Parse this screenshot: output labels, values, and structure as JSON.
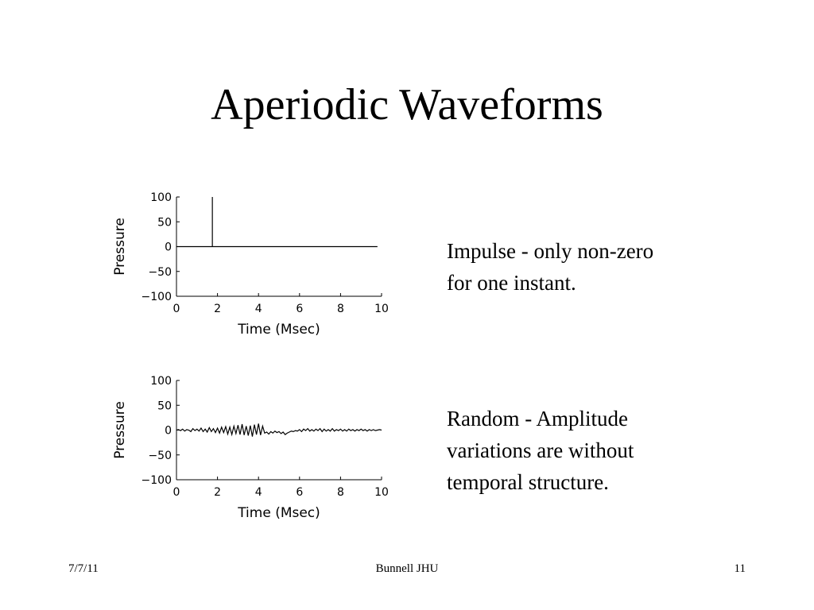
{
  "slide": {
    "title": "Aperiodic Waveforms",
    "descriptions": [
      {
        "lines": [
          "Impulse - only non-zero",
          "for one instant."
        ]
      },
      {
        "lines": [
          "Random - Amplitude",
          "variations are without",
          "temporal structure."
        ]
      }
    ],
    "footer": {
      "date": "7/7/11",
      "author": "Bunnell JHU",
      "page": "11"
    }
  },
  "chart_data": [
    {
      "type": "line",
      "xlabel": "Time (Msec)",
      "ylabel": "Pressure",
      "xlim": [
        0,
        10
      ],
      "ylim": [
        -100,
        100
      ],
      "xticks": [
        0,
        2,
        4,
        6,
        8,
        10
      ],
      "yticks": [
        100,
        50,
        0,
        -50,
        -100
      ],
      "grid": false,
      "series": [
        {
          "x": [
            0,
            1.75,
            1.75,
            1.75,
            9.8
          ],
          "y": [
            0,
            0,
            100,
            0,
            0
          ]
        }
      ]
    },
    {
      "type": "line",
      "xlabel": "Time (Msec)",
      "ylabel": "Pressure",
      "xlim": [
        0,
        10
      ],
      "ylim": [
        -100,
        100
      ],
      "xticks": [
        0,
        2,
        4,
        6,
        8,
        10
      ],
      "yticks": [
        100,
        50,
        0,
        -50,
        -100
      ],
      "grid": false,
      "series": [
        {
          "x": [
            0.0,
            0.1,
            0.2,
            0.3,
            0.4,
            0.5,
            0.6,
            0.7,
            0.8,
            0.9,
            1.0,
            1.1,
            1.2,
            1.3,
            1.4,
            1.5,
            1.6,
            1.7,
            1.8,
            1.9,
            2.0,
            2.1,
            2.2,
            2.3,
            2.4,
            2.5,
            2.6,
            2.7,
            2.8,
            2.9,
            3.0,
            3.1,
            3.2,
            3.3,
            3.4,
            3.5,
            3.6,
            3.7,
            3.8,
            3.9,
            4.0,
            4.1,
            4.2,
            4.3,
            4.4,
            4.5,
            4.6,
            4.7,
            4.8,
            4.9,
            5.0,
            5.1,
            5.2,
            5.3,
            5.4,
            5.5,
            5.6,
            5.7,
            5.8,
            5.9,
            6.0,
            6.1,
            6.2,
            6.3,
            6.4,
            6.5,
            6.6,
            6.7,
            6.8,
            6.9,
            7.0,
            7.1,
            7.2,
            7.3,
            7.4,
            7.5,
            7.6,
            7.7,
            7.8,
            7.9,
            8.0,
            8.1,
            8.2,
            8.3,
            8.4,
            8.5,
            8.6,
            8.7,
            8.8,
            8.9,
            9.0,
            9.1,
            9.2,
            9.3,
            9.4,
            9.5,
            9.6,
            9.7,
            9.8,
            9.9,
            10.0
          ],
          "y": [
            0,
            1,
            -1,
            2,
            -2,
            1,
            0,
            -3,
            3,
            -1,
            2,
            -2,
            4,
            -3,
            2,
            -4,
            5,
            -3,
            3,
            -5,
            4,
            -6,
            6,
            -5,
            7,
            -8,
            6,
            -9,
            8,
            -7,
            10,
            -9,
            12,
            -10,
            8,
            -11,
            9,
            -13,
            11,
            -9,
            13,
            -10,
            8,
            -6,
            -4,
            -8,
            -3,
            -6,
            -2,
            -5,
            -3,
            -7,
            -4,
            -9,
            -6,
            -4,
            -2,
            -3,
            -1,
            -2,
            1,
            -3,
            2,
            -1,
            3,
            -2,
            1,
            -2,
            2,
            -1,
            3,
            -3,
            2,
            -2,
            1,
            -2,
            3,
            -2,
            1,
            -1,
            2,
            -2,
            1,
            -2,
            2,
            -1,
            1,
            -2,
            1,
            -1,
            2,
            -1,
            1,
            -2,
            1,
            -1,
            1,
            -1,
            0,
            1,
            0
          ]
        }
      ]
    }
  ]
}
